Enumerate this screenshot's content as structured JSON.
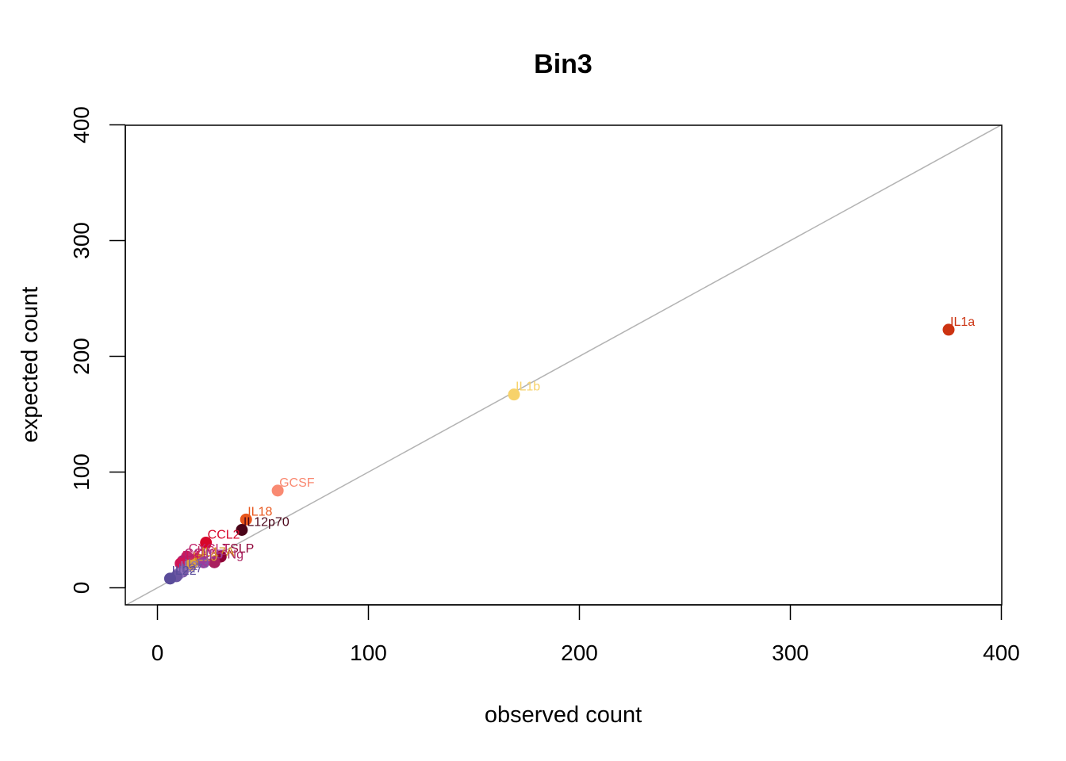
{
  "chart_data": {
    "type": "scatter",
    "title": "Bin3",
    "xlabel": "observed count",
    "ylabel": "expected count",
    "xlim": [
      0,
      400
    ],
    "ylim": [
      0,
      400
    ],
    "xticks": [
      0,
      100,
      200,
      300,
      400
    ],
    "yticks": [
      0,
      100,
      200,
      300,
      400
    ],
    "reference_line": "y = x",
    "reference_line_color": "#b3b3b3",
    "grid": false,
    "points": [
      {
        "label": "IL1a",
        "x": 375,
        "y": 223,
        "color": "#cc3311"
      },
      {
        "label": "IL1b",
        "x": 169,
        "y": 167,
        "color": "#f7d26a"
      },
      {
        "label": "GCSF",
        "x": 57,
        "y": 84,
        "color": "#f98a72"
      },
      {
        "label": "IL18",
        "x": 42,
        "y": 59,
        "color": "#e8561c"
      },
      {
        "label": "IL12p70",
        "x": 40,
        "y": 50,
        "color": "#4a0418"
      },
      {
        "label": "CCL2",
        "x": 23,
        "y": 39,
        "color": "#d7062a"
      },
      {
        "label": "TSLP",
        "x": 30,
        "y": 27,
        "color": "#8e0036"
      },
      {
        "label": "IFNg",
        "x": 27,
        "y": 22,
        "color": "#a9205e"
      },
      {
        "label": "IL6",
        "x": 18,
        "y": 25,
        "color": "#c0285a"
      },
      {
        "label": "CXCL1",
        "x": 14,
        "y": 27,
        "color": "#c1246c"
      },
      {
        "label": "CCL3",
        "x": 12,
        "y": 23,
        "color": "#b0206e"
      },
      {
        "label": "IL17A",
        "x": 20,
        "y": 24,
        "color": "#d5901e"
      },
      {
        "label": "IL10",
        "x": 16,
        "y": 20,
        "color": "#e0a33a"
      },
      {
        "label": "IL4",
        "x": 11,
        "y": 21,
        "color": "#d01456"
      },
      {
        "label": "IL5",
        "x": 22,
        "y": 22,
        "color": "#9c3a9c"
      },
      {
        "label": "IL13",
        "x": 12,
        "y": 14,
        "color": "#7d5aa6"
      },
      {
        "label": "IL2",
        "x": 10,
        "y": 12,
        "color": "#8e70b8"
      },
      {
        "label": "IL27",
        "x": 9,
        "y": 10,
        "color": "#6a55a2"
      },
      {
        "label": "IL22",
        "x": 6,
        "y": 8,
        "color": "#5a4c9a"
      }
    ]
  }
}
